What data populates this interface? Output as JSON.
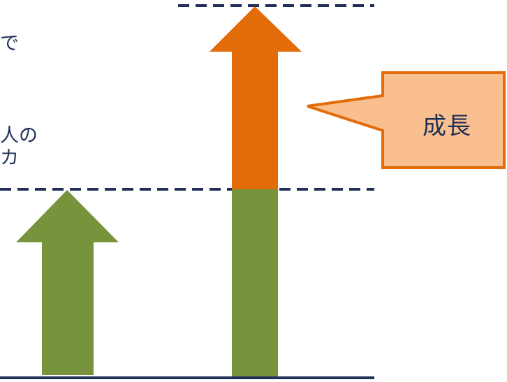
{
  "text_fragments": {
    "line1": "で",
    "line2": "人の",
    "line3": "カ"
  },
  "callout": {
    "label": "成長",
    "fill": "#f9bf8f",
    "border": "#e36c0a"
  },
  "colors": {
    "green_arrow": "#77933c",
    "orange_arrow": "#e36c0a",
    "guide_lines": "#1f2f57",
    "text": "#1f2f57"
  }
}
